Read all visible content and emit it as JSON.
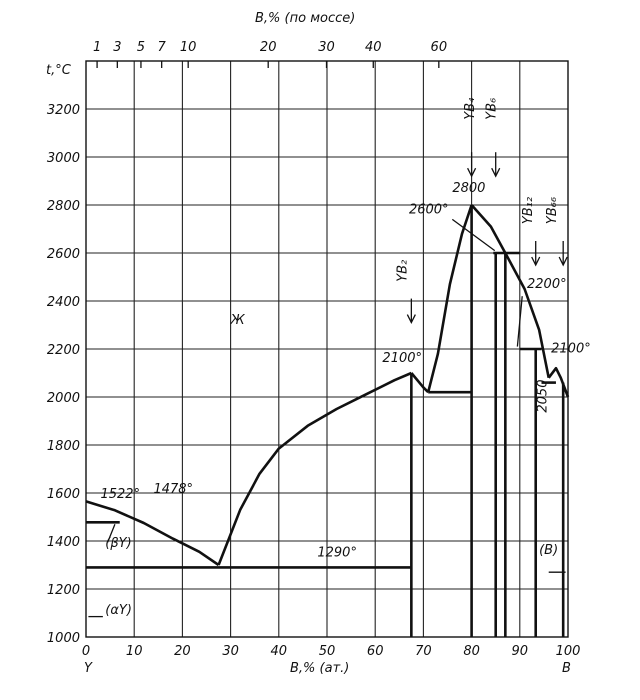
{
  "chart_data": {
    "type": "line",
    "title": "",
    "top_axis_label": "B,% (по мocce)",
    "top_ticks": [
      "1",
      "3",
      "5",
      "7",
      "10",
      "20",
      "30",
      "40",
      "60"
    ],
    "top_tick_at_pct": [
      2.3,
      6.5,
      11.4,
      15.7,
      21.2,
      37.8,
      49.9,
      59.6,
      73.2
    ],
    "xlabel": "B,% (ат.)",
    "ylabel": "t,°C",
    "xlim": [
      0,
      100
    ],
    "ylim": [
      1000,
      3400
    ],
    "xticks": [
      0,
      10,
      20,
      30,
      40,
      50,
      60,
      70,
      80,
      90,
      100
    ],
    "yticks": [
      1000,
      1200,
      1400,
      1600,
      1800,
      2000,
      2200,
      2400,
      2600,
      2800,
      3000,
      3200
    ],
    "x_extra_labels": {
      "left": "Y",
      "right": "B"
    },
    "series": [
      {
        "points": [
          [
            0,
            1565
          ],
          [
            6,
            1528
          ],
          [
            12,
            1475
          ],
          [
            18,
            1410
          ],
          [
            23.5,
            1355
          ],
          [
            27.5,
            1300
          ]
        ]
      },
      {
        "points": [
          [
            27.5,
            1300
          ],
          [
            32,
            1530
          ],
          [
            36,
            1680
          ],
          [
            40,
            1785
          ],
          [
            46,
            1880
          ],
          [
            52,
            1950
          ],
          [
            58,
            2010
          ],
          [
            64,
            2070
          ],
          [
            67.5,
            2100
          ]
        ]
      },
      {
        "points": [
          [
            67.5,
            2100
          ],
          [
            70,
            2040
          ],
          [
            71,
            2020
          ]
        ]
      },
      {
        "points": [
          [
            71,
            2020
          ],
          [
            73,
            2180
          ],
          [
            75.5,
            2470
          ],
          [
            78,
            2680
          ],
          [
            80,
            2800
          ]
        ]
      },
      {
        "points": [
          [
            80,
            2800
          ],
          [
            84,
            2710
          ],
          [
            87,
            2600
          ],
          [
            91,
            2450
          ],
          [
            94,
            2280
          ],
          [
            96,
            2080
          ]
        ]
      },
      {
        "points": [
          [
            96,
            2080
          ],
          [
            97.5,
            2120
          ],
          [
            98.5,
            2080
          ],
          [
            100,
            2000
          ]
        ]
      }
    ],
    "horizontal_lines": [
      {
        "y": 1290,
        "x": [
          0,
          67.5
        ]
      },
      {
        "y": 2020,
        "x": [
          71,
          80
        ]
      },
      {
        "y": 2600,
        "x": [
          84.5,
          90
        ]
      },
      {
        "y": 2200,
        "x": [
          90,
          94.5
        ]
      },
      {
        "y": 2060,
        "x": [
          94.5,
          97.5
        ]
      },
      {
        "y": 1478,
        "x": [
          0,
          7
        ]
      }
    ],
    "vertical_lines": [
      {
        "x": 67.5,
        "y": [
          1000,
          2100
        ]
      },
      {
        "x": 80,
        "y": [
          1000,
          2800
        ]
      },
      {
        "x": 85,
        "y": [
          1000,
          2600
        ]
      },
      {
        "x": 87,
        "y": [
          1000,
          2600
        ]
      },
      {
        "x": 93.3,
        "y": [
          1000,
          2200
        ]
      },
      {
        "x": 99,
        "y": [
          1000,
          2060
        ]
      }
    ],
    "annotations": [
      {
        "text": "1522°",
        "x": 3,
        "y": 1580
      },
      {
        "text": "1478°",
        "x": 14,
        "y": 1600
      },
      {
        "text": "(βY)",
        "x": 4,
        "y": 1375
      },
      {
        "text": "Ж",
        "x": 30,
        "y": 2305
      },
      {
        "text": "1290°",
        "x": 48,
        "y": 1335
      },
      {
        "text": "2100°",
        "x": 61.5,
        "y": 2145
      },
      {
        "text": "2800",
        "x": 76,
        "y": 2855
      },
      {
        "text": "2600°",
        "x": 67,
        "y": 2765
      },
      {
        "text": "2200°",
        "x": 91.5,
        "y": 2455
      },
      {
        "text": "2100°",
        "x": 96.5,
        "y": 2185
      },
      {
        "text": "2050",
        "x": 95.5,
        "y": 1935
      },
      {
        "text": "(αY)",
        "x": 4,
        "y": 1095
      },
      {
        "text": "(B)",
        "x": 94,
        "y": 1345
      },
      {
        "text": "YB₂",
        "x": 66.5,
        "y": 2480
      },
      {
        "text": "YB₄",
        "x": 80.5,
        "y": 3155
      },
      {
        "text": "YB₆",
        "x": 85,
        "y": 3155
      },
      {
        "text": "YB₁₂",
        "x": 92.5,
        "y": 2720
      },
      {
        "text": "YB₆₆",
        "x": 97.5,
        "y": 2720
      }
    ],
    "composition_arrows": [
      {
        "x": 67.5,
        "y_top": 2410,
        "y_tip": 2310
      },
      {
        "x": 80,
        "y_top": 3020,
        "y_tip": 2920
      },
      {
        "x": 85,
        "y_top": 3020,
        "y_tip": 2920
      },
      {
        "x": 93.3,
        "y_top": 2650,
        "y_tip": 2550
      },
      {
        "x": 99,
        "y_top": 2650,
        "y_tip": 2550
      }
    ],
    "grid": true
  }
}
